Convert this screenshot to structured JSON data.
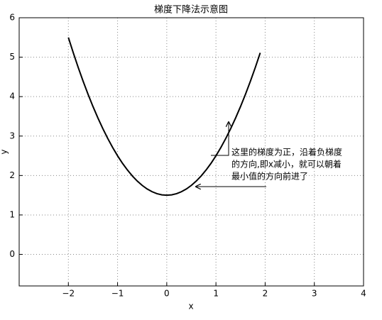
{
  "chart_data": {
    "type": "line",
    "title": "梯度下降法示意图",
    "x_label": "x",
    "y_label": "y",
    "x": [
      -2.0,
      -1.9,
      -1.8,
      -1.7,
      -1.6,
      -1.5,
      -1.4,
      -1.3,
      -1.2,
      -1.1,
      -1.0,
      -0.9,
      -0.8,
      -0.7,
      -0.6,
      -0.5,
      -0.4,
      -0.3,
      -0.2,
      -0.1,
      0.0,
      0.1,
      0.2,
      0.3,
      0.4,
      0.5,
      0.6,
      0.7,
      0.8,
      0.9,
      1.0,
      1.1,
      1.2,
      1.3,
      1.4,
      1.5,
      1.6,
      1.7,
      1.8,
      1.9
    ],
    "series": [
      {
        "color": "#000000",
        "values": [
          5.5,
          5.11,
          4.74,
          4.39,
          4.06,
          3.75,
          3.46,
          3.19,
          2.94,
          2.71,
          2.5,
          2.31,
          2.14,
          1.99,
          1.86,
          1.75,
          1.66,
          1.59,
          1.54,
          1.51,
          1.5,
          1.51,
          1.54,
          1.59,
          1.66,
          1.75,
          1.86,
          1.99,
          2.14,
          2.31,
          2.5,
          2.71,
          2.94,
          3.19,
          3.46,
          3.75,
          4.06,
          4.39,
          4.74,
          5.11
        ]
      }
    ],
    "xlim": [
      -3,
      4
    ],
    "ylim": [
      -0.8,
      6
    ],
    "xticks": [
      {
        "value": -2,
        "label": "−2"
      },
      {
        "value": -1,
        "label": "−1"
      },
      0,
      1,
      2,
      3,
      4
    ],
    "yticks": [
      0,
      1,
      2,
      3,
      4,
      5,
      6
    ],
    "grid": true,
    "annotation": [
      "这里的梯度为正，沿着负梯度",
      "的方向,即x减小，就可以朝着",
      "最小值的方向前进了"
    ]
  }
}
